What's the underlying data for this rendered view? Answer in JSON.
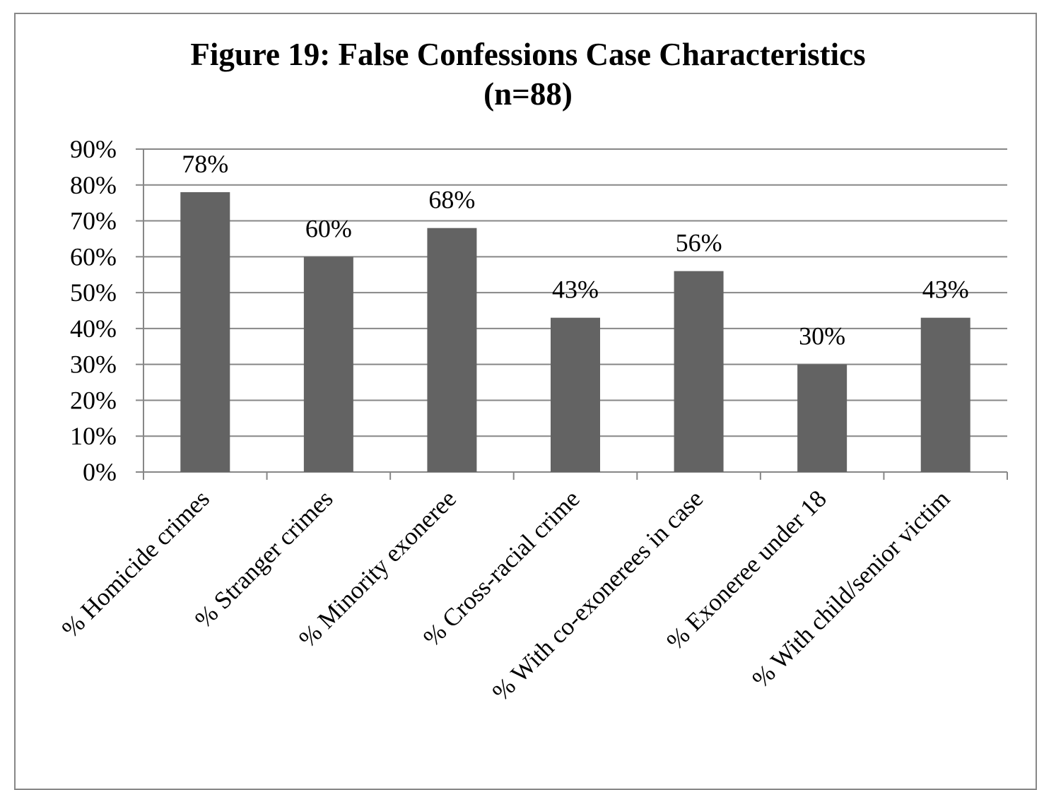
{
  "chart_data": {
    "type": "bar",
    "title": "Figure 19: False Confessions Case Characteristics",
    "subtitle": "(n=88)",
    "categories": [
      "% Homicide crimes",
      "% Stranger crimes",
      "% Minority exoneree",
      "% Cross-racial crime",
      "% With co-exonerees in case",
      "% Exoneree under 18",
      "% With child/senior victim"
    ],
    "values": [
      78,
      60,
      68,
      43,
      56,
      30,
      43
    ],
    "data_labels": [
      "78%",
      "60%",
      "68%",
      "43%",
      "56%",
      "30%",
      "43%"
    ],
    "ylim": [
      0,
      90
    ],
    "yticks": [
      "0%",
      "10%",
      "20%",
      "30%",
      "40%",
      "50%",
      "60%",
      "70%",
      "80%",
      "90%"
    ],
    "xlabel": "",
    "ylabel": "",
    "grid": true,
    "legend": "none",
    "colors": {
      "bar": "#636363",
      "grid": "#878787"
    }
  }
}
